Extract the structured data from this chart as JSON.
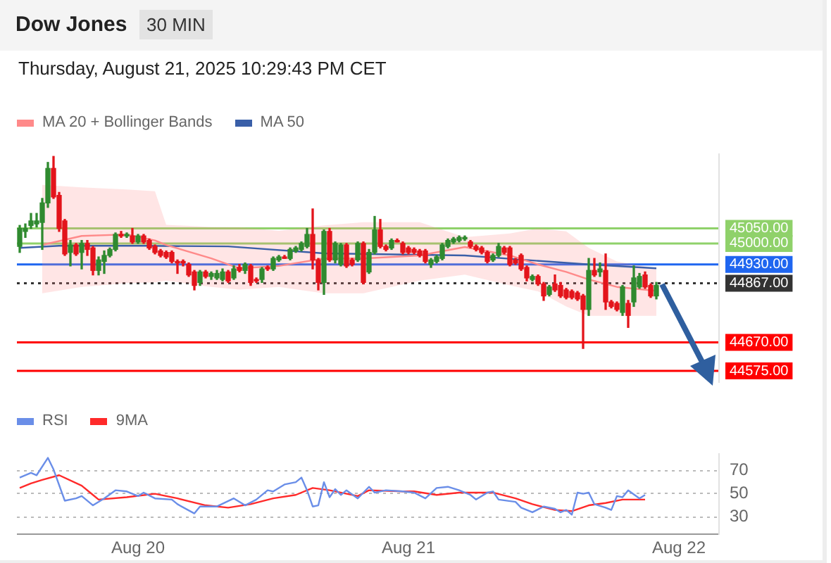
{
  "chart_data": [
    {
      "type": "candlestick",
      "title": "Dow Jones",
      "subtitle": "Thursday, August 21, 2025 10:29:43 PM CET",
      "annotations": [
        "30 MIN"
      ],
      "x": [
        "2025-08-19T13:30",
        "2025-08-19T14:00",
        "2025-08-19T14:30",
        "2025-08-19T15:00",
        "2025-08-19T15:30",
        "2025-08-19T16:00",
        "2025-08-19T16:30",
        "2025-08-19T17:00",
        "2025-08-19T17:30",
        "2025-08-19T18:00",
        "2025-08-19T18:30",
        "2025-08-19T19:00",
        "2025-08-19T19:30",
        "2025-08-19T20:00",
        "2025-08-19T20:30",
        "2025-08-19T21:00",
        "2025-08-19T21:30",
        "2025-08-19T22:00",
        "2025-08-19T22:30",
        "2025-08-19T23:00",
        "2025-08-19T23:30",
        "2025-08-20T00:00",
        "2025-08-20T00:30",
        "2025-08-20T01:00",
        "2025-08-20T01:30",
        "2025-08-20T02:00",
        "2025-08-20T02:30",
        "2025-08-20T03:00",
        "2025-08-20T03:30",
        "2025-08-20T04:00",
        "2025-08-20T04:30",
        "2025-08-20T05:00",
        "2025-08-20T05:30",
        "2025-08-20T06:00",
        "2025-08-20T06:30",
        "2025-08-20T07:00",
        "2025-08-20T07:30",
        "2025-08-20T08:00",
        "2025-08-20T08:30",
        "2025-08-20T09:00",
        "2025-08-20T09:30",
        "2025-08-20T10:00",
        "2025-08-20T10:30",
        "2025-08-20T11:00",
        "2025-08-20T11:30",
        "2025-08-20T12:00",
        "2025-08-20T12:30",
        "2025-08-20T13:00",
        "2025-08-20T13:30",
        "2025-08-20T14:00",
        "2025-08-20T14:30",
        "2025-08-20T15:00",
        "2025-08-20T15:30",
        "2025-08-20T16:00",
        "2025-08-20T16:30",
        "2025-08-20T17:00",
        "2025-08-20T17:30",
        "2025-08-20T18:00",
        "2025-08-20T18:30",
        "2025-08-20T19:00",
        "2025-08-20T19:30",
        "2025-08-20T20:00",
        "2025-08-20T20:30",
        "2025-08-20T21:00",
        "2025-08-20T21:30",
        "2025-08-20T22:00",
        "2025-08-20T22:30",
        "2025-08-20T23:00",
        "2025-08-20T23:30",
        "2025-08-21T00:00",
        "2025-08-21T00:30",
        "2025-08-21T01:00",
        "2025-08-21T01:30",
        "2025-08-21T02:00",
        "2025-08-21T02:30",
        "2025-08-21T03:00",
        "2025-08-21T03:30",
        "2025-08-21T04:00",
        "2025-08-21T04:30",
        "2025-08-21T05:00",
        "2025-08-21T05:30",
        "2025-08-21T06:00",
        "2025-08-21T06:30",
        "2025-08-21T07:00",
        "2025-08-21T07:30",
        "2025-08-21T08:00",
        "2025-08-21T08:30",
        "2025-08-21T09:00",
        "2025-08-21T09:30",
        "2025-08-21T10:00",
        "2025-08-21T10:30",
        "2025-08-21T11:00",
        "2025-08-21T11:30",
        "2025-08-21T12:00",
        "2025-08-21T12:30",
        "2025-08-21T13:00",
        "2025-08-21T13:30",
        "2025-08-21T14:00",
        "2025-08-21T14:30",
        "2025-08-21T15:00",
        "2025-08-21T15:30",
        "2025-08-21T16:00",
        "2025-08-21T16:30",
        "2025-08-21T17:00",
        "2025-08-21T17:30",
        "2025-08-21T18:00",
        "2025-08-21T18:30",
        "2025-08-21T19:00",
        "2025-08-21T19:30",
        "2025-08-21T20:00",
        "2025-08-21T20:30",
        "2025-08-21T21:00",
        "2025-08-21T21:30",
        "2025-08-21T22:00"
      ],
      "ohlc": [
        [
          44990,
          45060,
          44970,
          45050
        ],
        [
          45040,
          45065,
          45020,
          45050
        ],
        [
          45060,
          45100,
          45050,
          45075
        ],
        [
          45065,
          45100,
          45055,
          45075
        ],
        [
          45070,
          45150,
          44980,
          45135
        ],
        [
          45135,
          45270,
          45120,
          45250
        ],
        [
          45250,
          45290,
          45150,
          45155
        ],
        [
          45160,
          45170,
          45040,
          45050
        ],
        [
          45075,
          45080,
          44960,
          44965
        ],
        [
          44970,
          45010,
          44925,
          44995
        ],
        [
          44995,
          45000,
          44960,
          44965
        ],
        [
          44970,
          45010,
          44915,
          45000
        ],
        [
          45000,
          45010,
          44960,
          44980
        ],
        [
          44985,
          44990,
          44895,
          44910
        ],
        [
          44910,
          44955,
          44895,
          44945
        ],
        [
          44940,
          44975,
          44900,
          44960
        ],
        [
          44960,
          44985,
          44955,
          44980
        ],
        [
          44980,
          45035,
          44975,
          45030
        ],
        [
          45030,
          45040,
          45020,
          45025
        ],
        [
          45025,
          45035,
          45020,
          45030
        ],
        [
          45025,
          45050,
          45000,
          45005
        ],
        [
          45005,
          45030,
          45000,
          45025
        ],
        [
          45025,
          45030,
          45000,
          45005
        ],
        [
          45010,
          45015,
          44980,
          44985
        ],
        [
          44990,
          44995,
          44965,
          44970
        ],
        [
          44975,
          44980,
          44955,
          44960
        ],
        [
          44970,
          44975,
          44950,
          44955
        ],
        [
          44970,
          44975,
          44935,
          44940
        ],
        [
          44940,
          44945,
          44900,
          44935
        ],
        [
          44940,
          44945,
          44925,
          44935
        ],
        [
          44930,
          44935,
          44890,
          44895
        ],
        [
          44905,
          44910,
          44845,
          44860
        ],
        [
          44870,
          44910,
          44860,
          44905
        ],
        [
          44905,
          44910,
          44885,
          44890
        ],
        [
          44890,
          44905,
          44880,
          44900
        ],
        [
          44885,
          44910,
          44880,
          44900
        ],
        [
          44880,
          44915,
          44875,
          44905
        ],
        [
          44905,
          44910,
          44870,
          44875
        ],
        [
          44885,
          44925,
          44880,
          44915
        ],
        [
          44920,
          44930,
          44905,
          44910
        ],
        [
          44910,
          44935,
          44900,
          44930
        ],
        [
          44925,
          44930,
          44860,
          44870
        ],
        [
          44880,
          44885,
          44870,
          44875
        ],
        [
          44880,
          44920,
          44870,
          44915
        ],
        [
          44920,
          44925,
          44910,
          44915
        ],
        [
          44915,
          44955,
          44910,
          44950
        ],
        [
          44945,
          44960,
          44940,
          44955
        ],
        [
          44955,
          44960,
          44950,
          44950
        ],
        [
          44950,
          44985,
          44945,
          44980
        ],
        [
          44975,
          44990,
          44970,
          44985
        ],
        [
          44980,
          45005,
          44975,
          45000
        ],
        [
          44990,
          45050,
          44985,
          45030
        ],
        [
          45030,
          45115,
          44915,
          44945
        ],
        [
          44945,
          44950,
          44845,
          44870
        ],
        [
          44870,
          45045,
          44830,
          45040
        ],
        [
          45040,
          45050,
          44940,
          44945
        ],
        [
          44945,
          45005,
          44935,
          45000
        ],
        [
          44930,
          45000,
          44925,
          44995
        ],
        [
          44995,
          45000,
          44920,
          44925
        ],
        [
          44945,
          44950,
          44925,
          44930
        ],
        [
          44945,
          45005,
          44940,
          45000
        ],
        [
          45000,
          45005,
          44865,
          44870
        ],
        [
          44905,
          44980,
          44900,
          44970
        ],
        [
          44970,
          45090,
          44965,
          45045
        ],
        [
          45045,
          45080,
          44985,
          44990
        ],
        [
          44990,
          44995,
          44975,
          44980
        ],
        [
          44985,
          45015,
          44980,
          45010
        ],
        [
          45010,
          45015,
          45005,
          45005
        ],
        [
          45000,
          45005,
          44965,
          44970
        ],
        [
          44985,
          44990,
          44965,
          44970
        ],
        [
          44980,
          44985,
          44965,
          44970
        ],
        [
          44975,
          44980,
          44955,
          44960
        ],
        [
          44975,
          44980,
          44935,
          44940
        ],
        [
          44930,
          44950,
          44920,
          44945
        ],
        [
          44940,
          44960,
          44935,
          44955
        ],
        [
          44950,
          45000,
          44945,
          44995
        ],
        [
          44990,
          45015,
          44985,
          45010
        ],
        [
          45005,
          45020,
          45000,
          45015
        ],
        [
          45010,
          45025,
          45005,
          45020
        ],
        [
          45015,
          45025,
          45010,
          45020
        ],
        [
          45005,
          45010,
          44985,
          44990
        ],
        [
          44990,
          44995,
          44975,
          44980
        ],
        [
          44985,
          44990,
          44965,
          44970
        ],
        [
          44970,
          44975,
          44935,
          44940
        ],
        [
          44945,
          44965,
          44940,
          44960
        ],
        [
          44960,
          45000,
          44955,
          44990
        ],
        [
          44985,
          44990,
          44965,
          44970
        ],
        [
          44985,
          44990,
          44925,
          44930
        ],
        [
          44945,
          44950,
          44930,
          44935
        ],
        [
          44960,
          44965,
          44910,
          44915
        ],
        [
          44920,
          44925,
          44875,
          44885
        ],
        [
          44880,
          44895,
          44875,
          44890
        ],
        [
          44890,
          44895,
          44860,
          44865
        ],
        [
          44865,
          44870,
          44810,
          44825
        ],
        [
          44830,
          44860,
          44825,
          44855
        ],
        [
          44865,
          44895,
          44840,
          44845
        ],
        [
          44860,
          44870,
          44820,
          44825
        ],
        [
          44845,
          44850,
          44815,
          44820
        ],
        [
          44840,
          44845,
          44815,
          44820
        ],
        [
          44835,
          44840,
          44810,
          44815
        ],
        [
          44825,
          44830,
          44650,
          44780
        ],
        [
          44780,
          44950,
          44760,
          44910
        ],
        [
          44910,
          44950,
          44890,
          44895
        ],
        [
          44905,
          44935,
          44890,
          44915
        ],
        [
          44910,
          44965,
          44780,
          44805
        ],
        [
          44805,
          44810,
          44785,
          44790
        ],
        [
          44800,
          44805,
          44775,
          44780
        ],
        [
          44770,
          44860,
          44760,
          44855
        ],
        [
          44800,
          44810,
          44720,
          44760
        ],
        [
          44805,
          44925,
          44790,
          44885
        ],
        [
          44855,
          44900,
          44850,
          44890
        ],
        [
          44895,
          44905,
          44850,
          44855
        ],
        [
          44860,
          44865,
          44820,
          44825
        ],
        [
          44825,
          44870,
          44815,
          44860
        ]
      ],
      "series": [
        {
          "type": "line",
          "name": "MA 20 + Bollinger Bands",
          "color": "#ff8a8a",
          "x": [
            "2025-08-19T15:30",
            "2025-08-19T19:00",
            "2025-08-19T23:00",
            "2025-08-20T01:30",
            "2025-08-20T02:30",
            "2025-08-20T06:30",
            "2025-08-20T09:00",
            "2025-08-20T12:30",
            "2025-08-20T16:30",
            "2025-08-20T20:00",
            "2025-08-21T01:00",
            "2025-08-21T05:00",
            "2025-08-21T09:00",
            "2025-08-21T11:30",
            "2025-08-21T14:00",
            "2025-08-21T16:00",
            "2025-08-21T18:30",
            "2025-08-21T22:00"
          ],
          "values": [
            44995,
            45025,
            45030,
            45010,
            44995,
            44950,
            44917,
            44925,
            44950,
            44950,
            44960,
            44988,
            44960,
            44930,
            44905,
            44880,
            44855,
            44842
          ],
          "lower": [
            44834,
            44855,
            44867,
            44870,
            44876,
            44855,
            44846,
            44855,
            44834,
            44834,
            44876,
            44896,
            44860,
            44840,
            44790,
            44759,
            44759,
            44759
          ],
          "upper": [
            45195,
            45187,
            45180,
            45174,
            45062,
            45055,
            45054,
            45042,
            45060,
            45071,
            45071,
            45021,
            45033,
            45050,
            45040,
            44985,
            44940,
            44917
          ]
        },
        {
          "type": "line",
          "name": "MA 50",
          "color": "#3a5fa8",
          "x": [
            "2025-08-19T13:30",
            "2025-08-19T17:00",
            "2025-08-20T00:30",
            "2025-08-20T08:00",
            "2025-08-20T16:30",
            "2025-08-21T05:00",
            "2025-08-21T10:00",
            "2025-08-21T16:00",
            "2025-08-21T22:00"
          ],
          "values": [
            44985,
            44992,
            44992,
            44990,
            44967,
            44960,
            44946,
            44930,
            44917
          ]
        }
      ],
      "xlim": [
        "2025-08-19T13:15",
        "2025-08-22T03:30"
      ],
      "ylim": [
        44540,
        45300
      ],
      "yticks": [
        {
          "value": 44575,
          "label": "44575.00"
        },
        {
          "value": 44670,
          "label": "44670.00"
        },
        {
          "value": 44867,
          "label": "44867.00"
        },
        {
          "value": 44930,
          "label": "44930.00"
        },
        {
          "value": 45000,
          "label": "45000.00"
        },
        {
          "value": 45050,
          "label": "45050.00"
        }
      ],
      "ref_lines": [
        {
          "axis": "y",
          "value": 45050,
          "color": "#8fd16a"
        },
        {
          "axis": "y",
          "value": 45000,
          "color": "#8fd16a"
        },
        {
          "axis": "y",
          "value": 44930,
          "color": "#1f66f0"
        },
        {
          "axis": "y",
          "value": 44867,
          "color": "#333333",
          "line_style": "dotted"
        },
        {
          "axis": "y",
          "value": 44670,
          "color": "#ff0000"
        },
        {
          "axis": "y",
          "value": 44575,
          "color": "#ff0000"
        }
      ],
      "legend": "top left",
      "tick_labels": "y",
      "marker": "none"
    },
    {
      "type": "line",
      "series": [
        {
          "name": "RSI",
          "color": "#6a8ee8",
          "x": [
            "2025-08-19T13:30",
            "2025-08-19T14:30",
            "2025-08-19T15:00",
            "2025-08-19T16:00",
            "2025-08-19T16:30",
            "2025-08-19T17:30",
            "2025-08-19T18:30",
            "2025-08-19T19:00",
            "2025-08-19T20:00",
            "2025-08-19T21:00",
            "2025-08-19T22:00",
            "2025-08-19T23:00",
            "2025-08-20T00:00",
            "2025-08-20T00:30",
            "2025-08-20T01:30",
            "2025-08-20T03:00",
            "2025-08-20T03:30",
            "2025-08-20T05:00",
            "2025-08-20T05:30",
            "2025-08-20T07:00",
            "2025-08-20T08:30",
            "2025-08-20T09:30",
            "2025-08-20T10:30",
            "2025-08-20T11:30",
            "2025-08-20T12:00",
            "2025-08-20T13:00",
            "2025-08-20T14:00",
            "2025-08-20T14:30",
            "2025-08-20T15:00",
            "2025-08-20T15:30",
            "2025-08-20T16:00",
            "2025-08-20T16:30",
            "2025-08-20T17:00",
            "2025-08-20T17:30",
            "2025-08-20T18:00",
            "2025-08-20T18:30",
            "2025-08-20T19:30",
            "2025-08-20T20:30",
            "2025-08-20T21:00",
            "2025-08-20T22:00",
            "2025-08-20T23:30",
            "2025-08-21T00:30",
            "2025-08-21T01:30",
            "2025-08-21T02:30",
            "2025-08-21T03:30",
            "2025-08-21T04:30",
            "2025-08-21T05:30",
            "2025-08-21T06:00",
            "2025-08-21T07:00",
            "2025-08-21T07:30",
            "2025-08-21T08:00",
            "2025-08-21T09:30",
            "2025-08-21T10:00",
            "2025-08-21T11:00",
            "2025-08-21T12:00",
            "2025-08-21T13:00",
            "2025-08-21T13:30",
            "2025-08-21T14:00",
            "2025-08-21T14:30",
            "2025-08-21T15:00",
            "2025-08-21T15:30",
            "2025-08-21T16:00",
            "2025-08-21T16:30",
            "2025-08-21T17:30",
            "2025-08-21T18:00",
            "2025-08-21T18:30",
            "2025-08-21T19:00",
            "2025-08-21T19:30",
            "2025-08-21T20:30",
            "2025-08-21T21:00"
          ],
          "values": [
            64,
            68,
            66,
            81,
            71,
            44,
            46,
            48,
            40,
            46,
            53,
            52,
            48,
            51,
            46,
            45,
            41,
            33,
            39,
            39,
            46,
            40,
            45,
            53,
            52,
            58,
            60,
            64,
            53,
            39,
            40,
            60,
            47,
            54,
            49,
            53,
            46,
            56,
            51,
            53,
            52,
            51,
            46,
            55,
            56,
            53,
            49,
            45,
            51,
            52,
            45,
            43,
            38,
            34,
            39,
            37,
            34,
            36,
            32,
            51,
            50,
            51,
            41,
            38,
            36,
            48,
            47,
            53,
            46,
            49
          ]
        },
        {
          "name": "9MA",
          "color": "#ff2a2a",
          "x": [
            "2025-08-19T13:30",
            "2025-08-19T14:30",
            "2025-08-19T15:30",
            "2025-08-19T17:00",
            "2025-08-19T19:00",
            "2025-08-19T20:00",
            "2025-08-19T20:30",
            "2025-08-19T23:00",
            "2025-08-20T01:30",
            "2025-08-20T03:30",
            "2025-08-20T06:00",
            "2025-08-20T08:00",
            "2025-08-20T10:00",
            "2025-08-20T12:00",
            "2025-08-20T14:00",
            "2025-08-20T15:30",
            "2025-08-20T17:00",
            "2025-08-20T19:30",
            "2025-08-20T20:30",
            "2025-08-20T23:30",
            "2025-08-21T00:30",
            "2025-08-21T02:30",
            "2025-08-21T04:30",
            "2025-08-21T07:30",
            "2025-08-21T09:30",
            "2025-08-21T11:00",
            "2025-08-21T13:00",
            "2025-08-21T14:30",
            "2025-08-21T16:00",
            "2025-08-21T17:30",
            "2025-08-21T19:00",
            "2025-08-21T21:00"
          ],
          "values": [
            55,
            59,
            62,
            66,
            57,
            49,
            45,
            47,
            50,
            46,
            40,
            38,
            41,
            46,
            49,
            55,
            53,
            48,
            53,
            52,
            52,
            49,
            51,
            51,
            46,
            41,
            36,
            35,
            40,
            42,
            45,
            45
          ]
        }
      ],
      "xlim": [
        "2025-08-19T13:15",
        "2025-08-22T03:30"
      ],
      "xticks": [
        {
          "value": "2025-08-20",
          "label": "Aug 20"
        },
        {
          "value": "2025-08-21",
          "label": "Aug 21"
        },
        {
          "value": "2025-08-22",
          "label": "Aug 22"
        }
      ],
      "ylim": [
        15,
        85
      ],
      "yticks": [
        30,
        50,
        70
      ],
      "grid": "y",
      "legend": "top left",
      "marker": "none"
    }
  ]
}
